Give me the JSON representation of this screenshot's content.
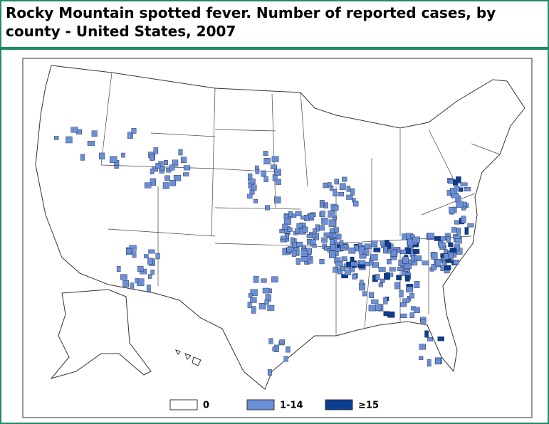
{
  "header": {
    "title_line_1": "Rocky Mountain spotted fever. Number of reported cases, by",
    "title_line_2": "county - United States, 2007"
  },
  "legend": [
    {
      "label": "0",
      "color": "#ffffff"
    },
    {
      "label": "1-14",
      "color": "#6a8fd8"
    },
    {
      "label": "≥15",
      "color": "#0b3d91"
    }
  ]
}
